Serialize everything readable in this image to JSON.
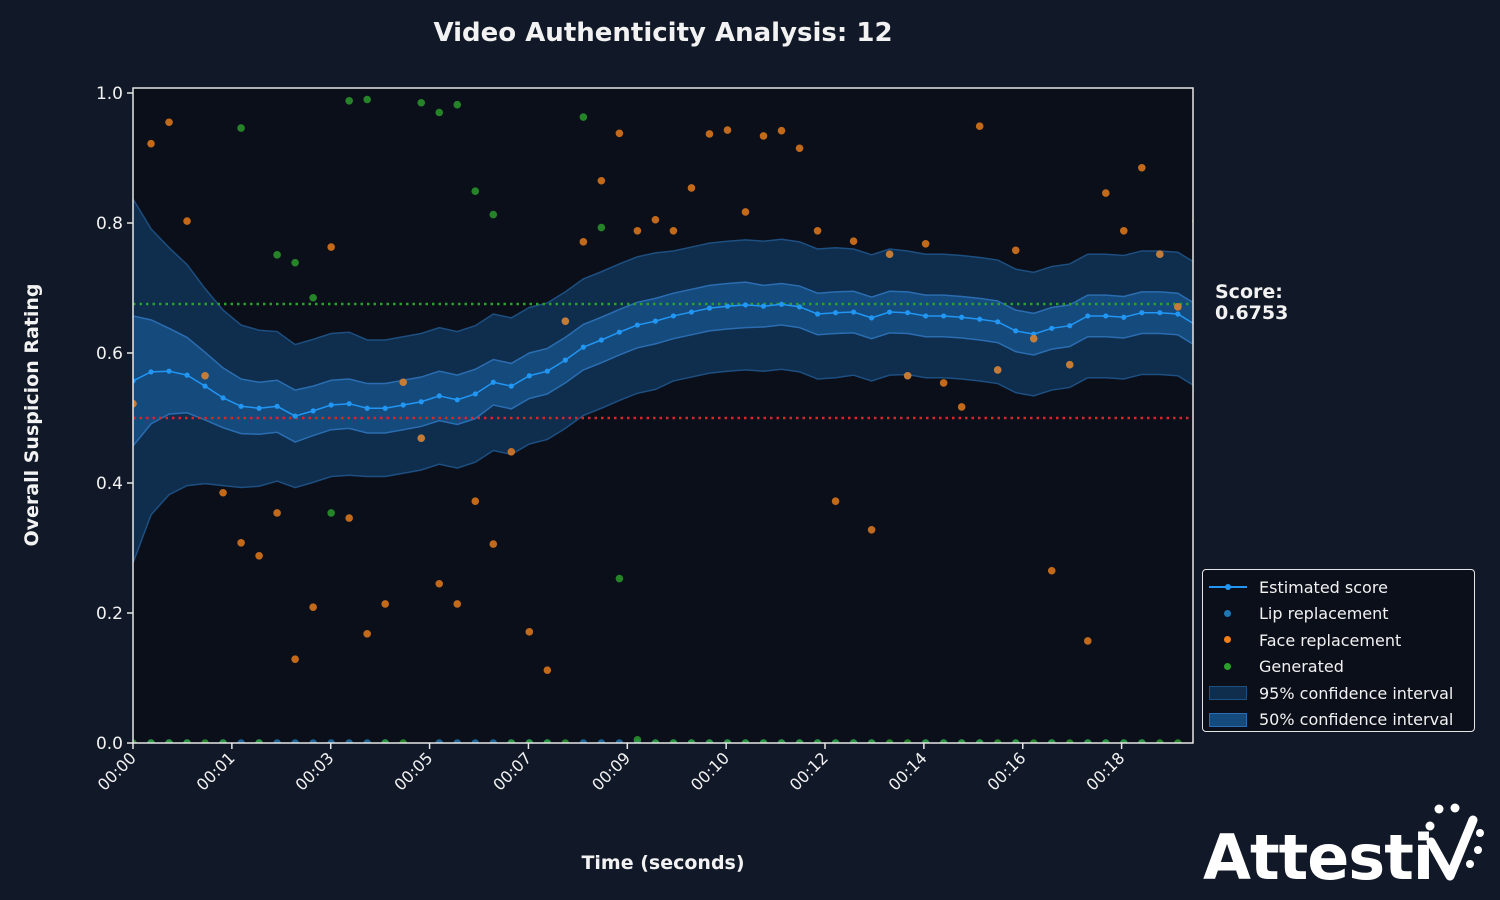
{
  "chart_data": {
    "type": "line",
    "title": "Video Authenticity Analysis: 12",
    "xlabel": "Time (seconds)",
    "ylabel": "Overall Suspicion Rating",
    "xlim": [
      0,
      19.3
    ],
    "ylim": [
      0,
      1.0
    ],
    "time_step": 0.328,
    "x_ticks": [
      0,
      1.8,
      3.6,
      5.4,
      7.2,
      9.0,
      10.8,
      12.6,
      14.4,
      16.2,
      18.0
    ],
    "x_tick_labels": [
      "00:00",
      "00:01",
      "00:03",
      "00:05",
      "00:07",
      "00:09",
      "00:10",
      "00:12",
      "00:14",
      "00:16",
      "00:18"
    ],
    "y_ticks": [
      0,
      0.2,
      0.4,
      0.6,
      0.8,
      1.0
    ],
    "y_tick_labels": [
      "0.0",
      "0.2",
      "0.4",
      "0.6",
      "0.8",
      "1.0"
    ],
    "grid": false,
    "legend_position": "lower-right outside",
    "reference_lines": [
      {
        "name": "score",
        "value": 0.6753,
        "color": "#2ca02c",
        "style": "dotted"
      },
      {
        "name": "threshold",
        "value": 0.5,
        "color": "#d62728",
        "style": "dotted"
      }
    ],
    "series": [
      {
        "name": "Estimated score",
        "kind": "line",
        "color": "#2196f3",
        "values": [
          0.557,
          0.571,
          0.572,
          0.566,
          0.549,
          0.531,
          0.518,
          0.515,
          0.518,
          0.503,
          0.511,
          0.52,
          0.522,
          0.515,
          0.515,
          0.52,
          0.525,
          0.534,
          0.528,
          0.537,
          0.555,
          0.549,
          0.565,
          0.572,
          0.589,
          0.609,
          0.62,
          0.632,
          0.643,
          0.649,
          0.657,
          0.663,
          0.669,
          0.672,
          0.674,
          0.672,
          0.675,
          0.671,
          0.66,
          0.662,
          0.663,
          0.654,
          0.663,
          0.662,
          0.657,
          0.657,
          0.655,
          0.652,
          0.648,
          0.634,
          0.629,
          0.638,
          0.642,
          0.657,
          0.657,
          0.655,
          0.662,
          0.662,
          0.66,
          0.643
        ]
      },
      {
        "name": "Lip replacement",
        "kind": "scatter",
        "color": "#1f77b4",
        "values": [
          0.522,
          0,
          0,
          0,
          0.565,
          0,
          0,
          0,
          0,
          0,
          0,
          0,
          0,
          0,
          0,
          0.555,
          0.469,
          0,
          0,
          0,
          0,
          0,
          0,
          0,
          0.649,
          0,
          0,
          0,
          0,
          0,
          0,
          0,
          0,
          0,
          0,
          0,
          0,
          0,
          0,
          0,
          0,
          0,
          0.752,
          0.565,
          0,
          0,
          0,
          0,
          0.574,
          0,
          0.622,
          0,
          0.582,
          0,
          0,
          0,
          0,
          0.752,
          0.671,
          0
        ]
      },
      {
        "name": "Face replacement",
        "kind": "scatter",
        "color": "#f07f1a",
        "values": [
          0.522,
          0.922,
          0.955,
          0.803,
          0.565,
          0.385,
          0.308,
          0.288,
          0.354,
          0.129,
          0.209,
          0.763,
          0.346,
          0.168,
          0.214,
          0.555,
          0.469,
          0.245,
          0.214,
          0.372,
          0.306,
          0.448,
          0.171,
          0.112,
          0.649,
          0.771,
          0.865,
          0.938,
          0.788,
          0.805,
          0.788,
          0.854,
          0.937,
          0.943,
          0.817,
          0.934,
          0.942,
          0.915,
          0.788,
          0.372,
          0.772,
          0.328,
          0.752,
          0.565,
          0.768,
          0.554,
          0.517,
          0.949,
          0.574,
          0.758,
          0.622,
          0.265,
          0.582,
          0.157,
          0.846,
          0.788,
          0.885,
          0.752,
          0.671,
          0.803
        ]
      },
      {
        "name": "Generated",
        "kind": "scatter",
        "color": "#2ca02c",
        "values": [
          0,
          0,
          0,
          0,
          0,
          0,
          0.946,
          0,
          0.751,
          0.739,
          0.685,
          0.354,
          0.988,
          0.99,
          0,
          0,
          0.985,
          0.97,
          0.982,
          0.849,
          0.813,
          0,
          0,
          0,
          0,
          0.963,
          0.793,
          0.253,
          0.005,
          0,
          0,
          0,
          0,
          0,
          0,
          0,
          0,
          0,
          0,
          0,
          0,
          0,
          0,
          0,
          0,
          0,
          0,
          0,
          0,
          0,
          0,
          0,
          0,
          0,
          0,
          0,
          0,
          0,
          0,
          0
        ]
      },
      {
        "name": "95% confidence interval",
        "kind": "band",
        "color": "#0f2d4d",
        "halfwidth": [
          0.28,
          0.22,
          0.19,
          0.17,
          0.15,
          0.135,
          0.125,
          0.12,
          0.115,
          0.11,
          0.11,
          0.11,
          0.11,
          0.105,
          0.105,
          0.105,
          0.105,
          0.105,
          0.105,
          0.105,
          0.105,
          0.105,
          0.105,
          0.105,
          0.105,
          0.105,
          0.105,
          0.105,
          0.105,
          0.105,
          0.1,
          0.1,
          0.1,
          0.1,
          0.1,
          0.1,
          0.1,
          0.1,
          0.1,
          0.1,
          0.097,
          0.097,
          0.097,
          0.095,
          0.095,
          0.095,
          0.095,
          0.095,
          0.095,
          0.095,
          0.095,
          0.095,
          0.095,
          0.095,
          0.095,
          0.095,
          0.095,
          0.095,
          0.095,
          0.095
        ]
      },
      {
        "name": "50% confidence interval",
        "kind": "band",
        "color": "#154a7d",
        "halfwidth": [
          0.1,
          0.08,
          0.066,
          0.058,
          0.052,
          0.046,
          0.042,
          0.04,
          0.04,
          0.04,
          0.038,
          0.038,
          0.038,
          0.038,
          0.038,
          0.038,
          0.038,
          0.038,
          0.038,
          0.038,
          0.035,
          0.035,
          0.035,
          0.035,
          0.035,
          0.035,
          0.035,
          0.035,
          0.035,
          0.035,
          0.035,
          0.035,
          0.035,
          0.035,
          0.035,
          0.032,
          0.032,
          0.032,
          0.032,
          0.032,
          0.032,
          0.032,
          0.032,
          0.032,
          0.032,
          0.032,
          0.032,
          0.032,
          0.032,
          0.032,
          0.032,
          0.032,
          0.032,
          0.032,
          0.032,
          0.032,
          0.032,
          0.032,
          0.032,
          0.032
        ]
      }
    ]
  },
  "score_annotation": {
    "label": "Score:",
    "value": "0.6753"
  },
  "legend": [
    "Estimated score",
    "Lip replacement",
    "Face replacement",
    "Generated",
    "95% confidence interval",
    "50% confidence interval"
  ],
  "logo": {
    "text": "Attestiv"
  }
}
